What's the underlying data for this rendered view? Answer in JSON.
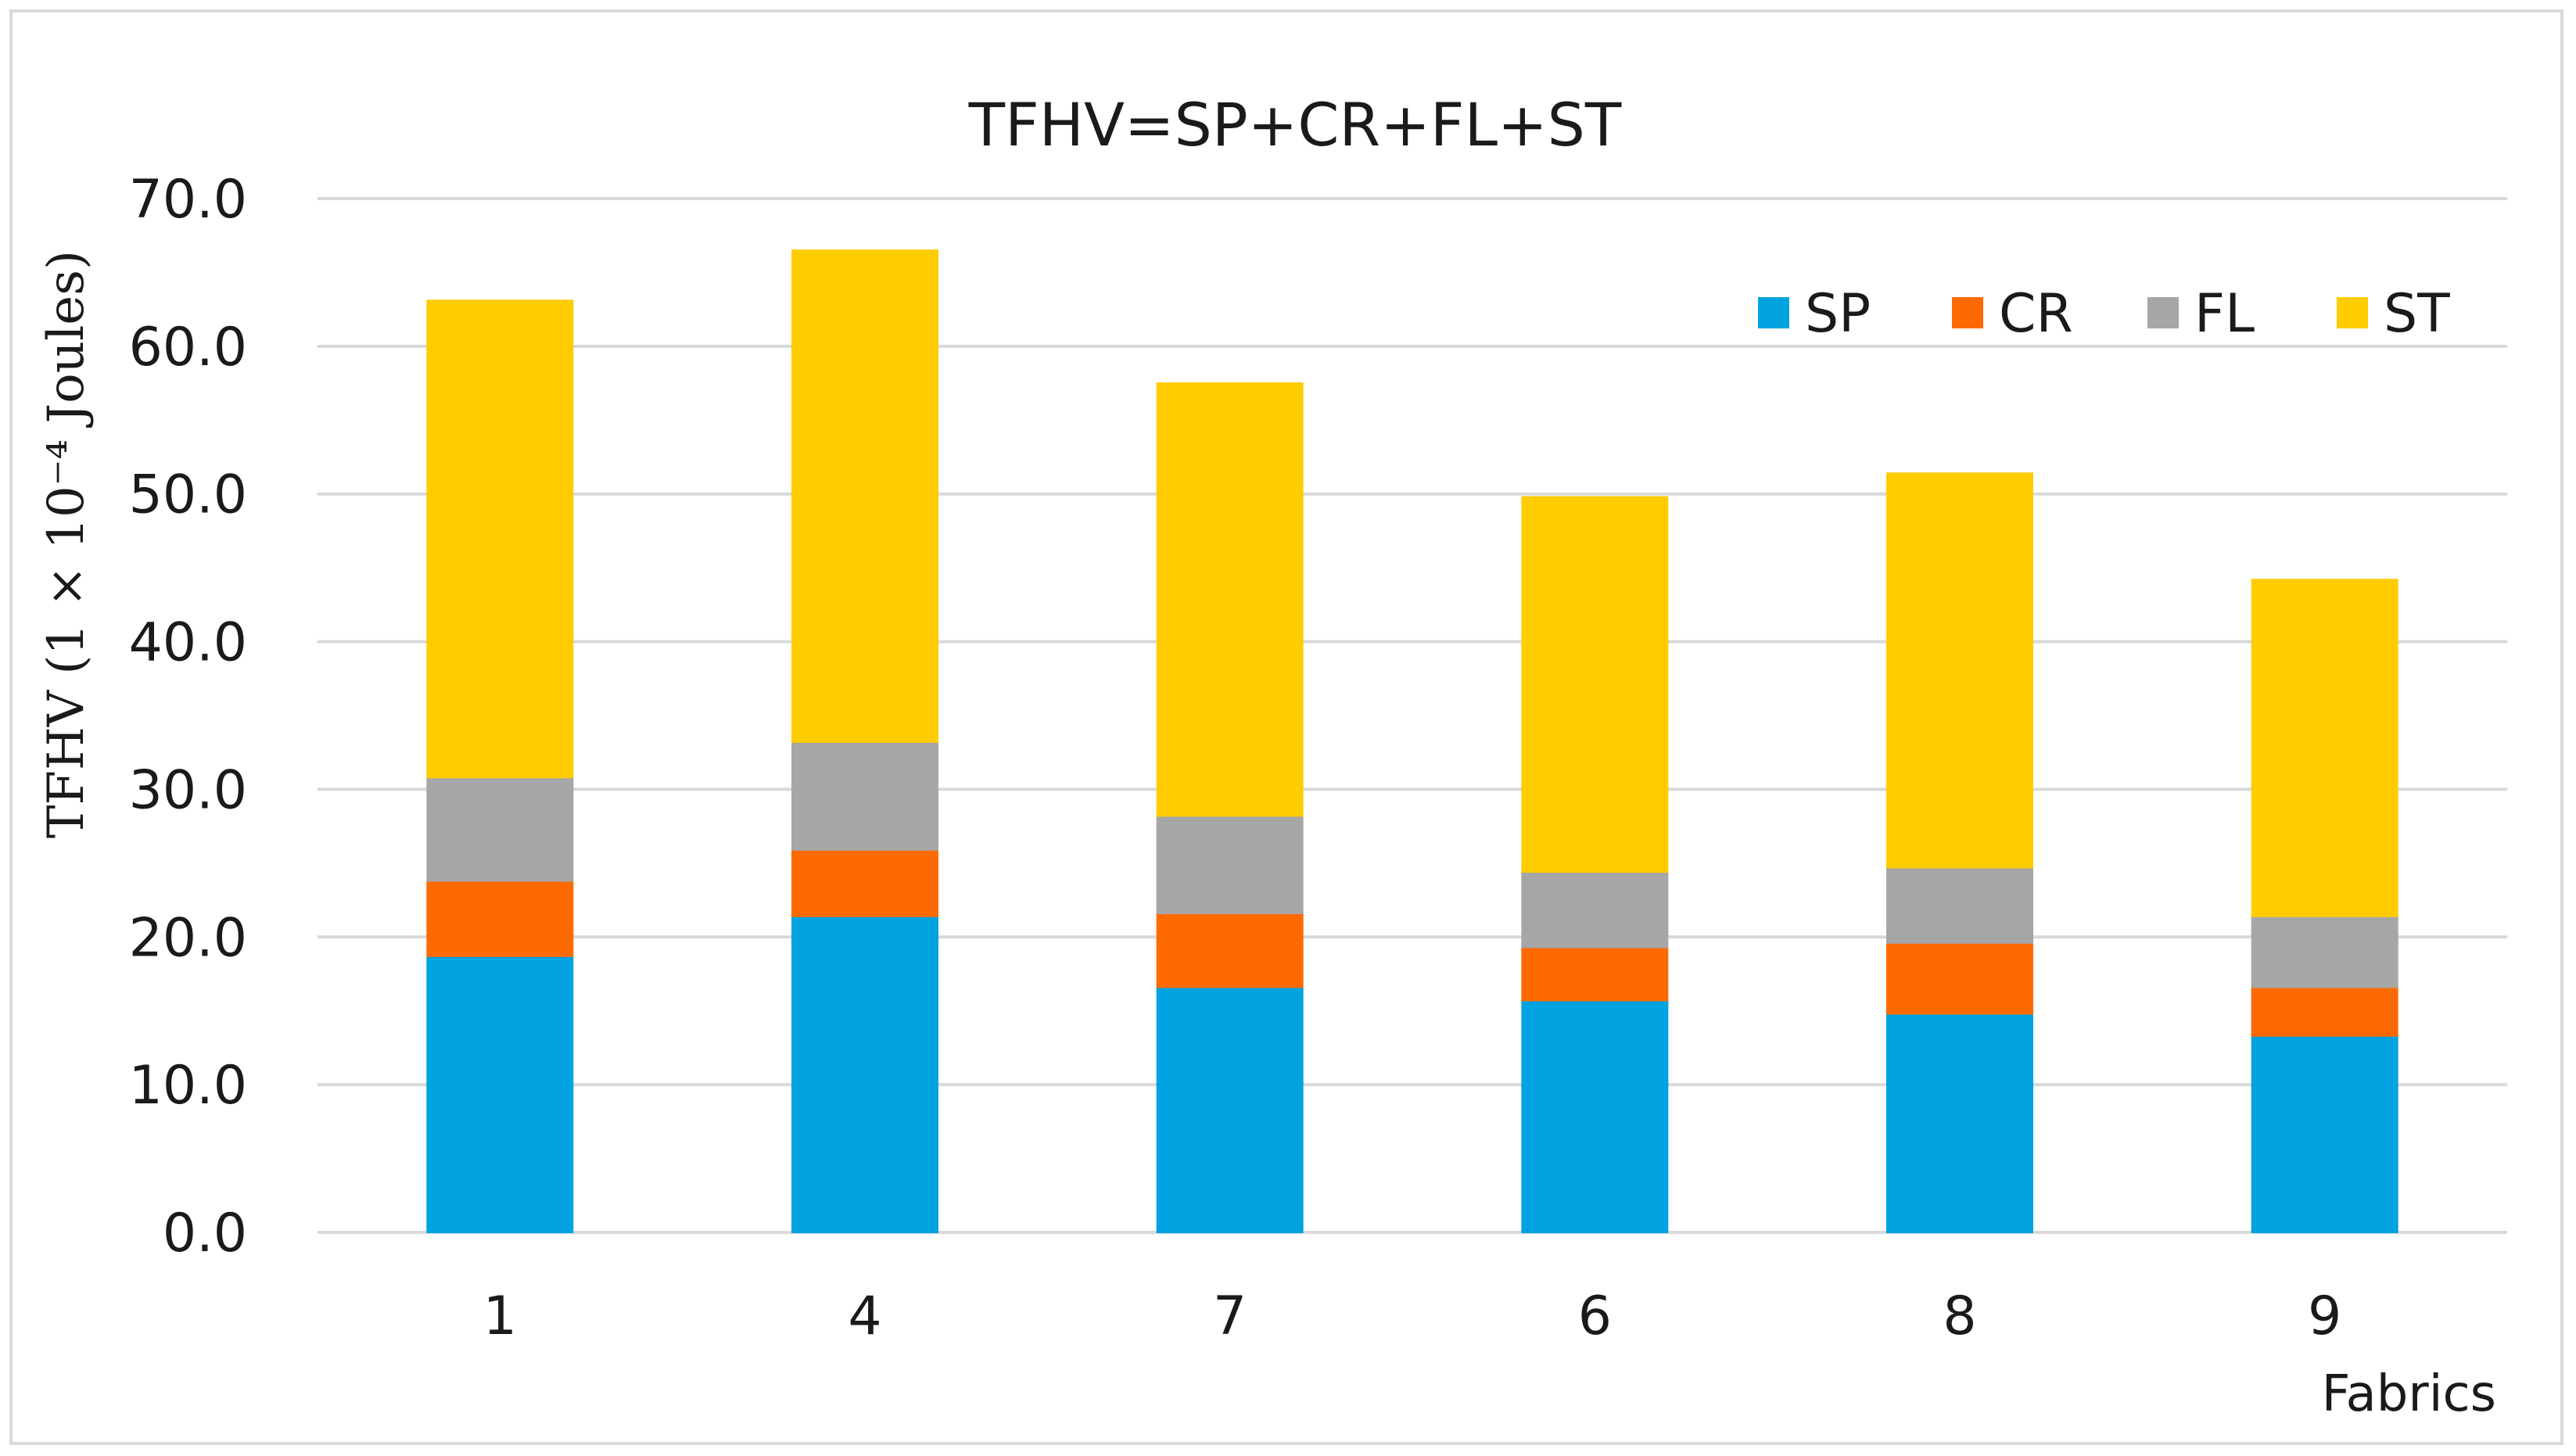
{
  "chart_data": {
    "type": "bar",
    "stacked": true,
    "title": "TFHV=SP+CR+FL+ST",
    "xlabel": "Fabrics",
    "ylabel": "TFHV (1 × 10⁻⁴ Joules)",
    "categories": [
      "1",
      "4",
      "7",
      "6",
      "8",
      "9"
    ],
    "ylim": [
      0,
      70
    ],
    "yticks": [
      "0.0",
      "10.0",
      "20.0",
      "30.0",
      "40.0",
      "50.0",
      "60.0",
      "70.0"
    ],
    "grid": true,
    "legend_position": "top-right",
    "series": [
      {
        "name": "SP",
        "color": "#00a2e0",
        "values": [
          18.7,
          21.4,
          16.6,
          15.7,
          14.8,
          13.3
        ]
      },
      {
        "name": "CR",
        "color": "#ff6a00",
        "values": [
          5.1,
          4.5,
          5.0,
          3.6,
          4.8,
          3.3
        ]
      },
      {
        "name": "FL",
        "color": "#a6a6a6",
        "values": [
          7.0,
          7.3,
          6.6,
          5.1,
          5.1,
          4.8
        ]
      },
      {
        "name": "ST",
        "color": "#ffcc00",
        "values": [
          32.3,
          33.3,
          29.3,
          25.4,
          26.7,
          22.8
        ]
      }
    ]
  }
}
